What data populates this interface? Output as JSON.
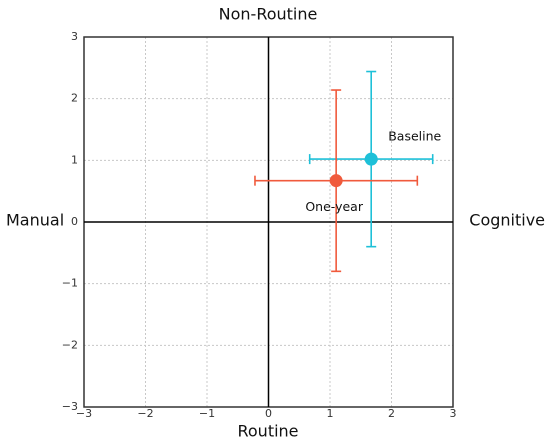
{
  "chart_data": {
    "type": "scatter",
    "top_label": "Non-Routine",
    "bottom_label": "Routine",
    "left_label": "Manual",
    "right_label": "Cognitive",
    "xlim": [
      -3,
      3
    ],
    "ylim": [
      -3,
      3
    ],
    "xticks": [
      {
        "value": -3,
        "label": "−3"
      },
      {
        "value": -2,
        "label": "−2"
      },
      {
        "value": -1,
        "label": "−1"
      },
      0,
      1,
      2,
      3
    ],
    "yticks": [
      {
        "value": -3,
        "label": "−3"
      },
      {
        "value": -2,
        "label": "−2"
      },
      {
        "value": -1,
        "label": "−1"
      },
      0,
      1,
      2,
      3
    ],
    "grid": true,
    "series": [
      {
        "name": "Baseline",
        "color": "#1ec0d8",
        "x": [
          1.67
        ],
        "values": [
          1.02
        ],
        "xerr": [
          1.0
        ],
        "yerr": [
          1.42
        ]
      },
      {
        "name": "One-year",
        "color": "#f05a3c",
        "x": [
          1.1
        ],
        "values": [
          0.67
        ],
        "xerr": [
          1.32
        ],
        "yerr": [
          1.47
        ]
      }
    ]
  }
}
